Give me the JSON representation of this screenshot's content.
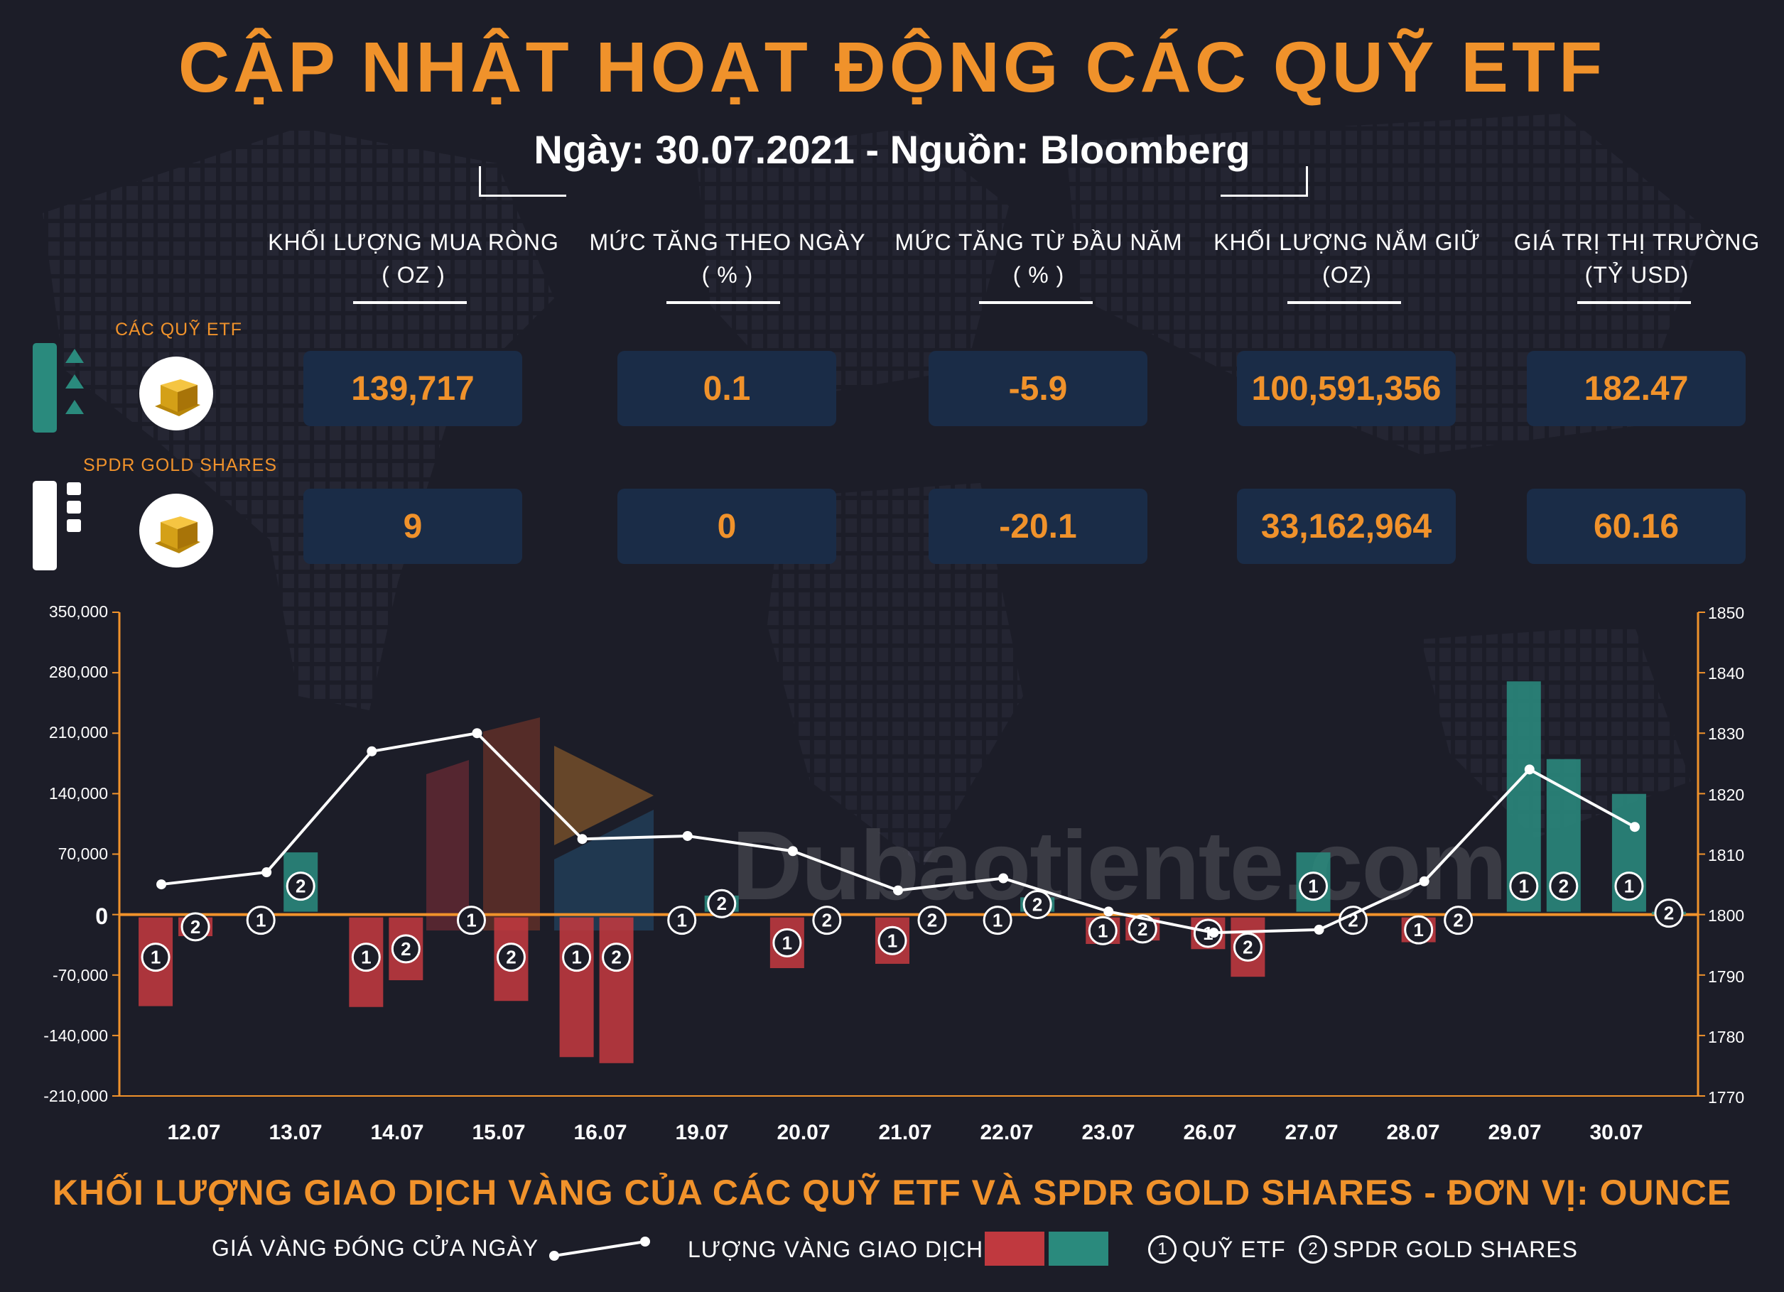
{
  "header": {
    "title": "CẬP NHẬT HOẠT ĐỘNG CÁC QUỸ ETF",
    "subtitle": "Ngày: 30.07.2021 - Nguồn: Bloomberg"
  },
  "table": {
    "columns": [
      {
        "line1": "KHỐI LƯỢNG MUA RÒNG",
        "line2": "( OZ )"
      },
      {
        "line1": "MỨC TĂNG THEO NGÀY",
        "line2": "( % )"
      },
      {
        "line1": "MỨC TĂNG TỪ ĐẦU NĂM",
        "line2": "( % )"
      },
      {
        "line1": "KHỐI LƯỢNG NẮM GIỮ",
        "line2": "(OZ)"
      },
      {
        "line1": "GIÁ TRỊ THỊ TRƯỜNG",
        "line2": "(TỶ USD)"
      }
    ],
    "rows": [
      {
        "label": "CÁC QUỸ ETF",
        "values": [
          "139,717",
          "0.1",
          "-5.9",
          "100,591,356",
          "182.47"
        ],
        "icon": "gold-bar-icon",
        "status_icon": "bar-with-up-arrows-icon"
      },
      {
        "label": "SPDR GOLD SHARES",
        "values": [
          "9",
          "0",
          "-20.1",
          "33,162,964",
          "60.16"
        ],
        "icon": "gold-bar-icon",
        "status_icon": "bar-with-squares-icon"
      }
    ]
  },
  "watermark": {
    "text": "Dubaotiente.com"
  },
  "colors": {
    "accent": "#f0922b",
    "negative": "#c0393f",
    "positive": "#2a8a7d",
    "price_line": "#ffffff",
    "background": "#1c1d28"
  },
  "chart_data": {
    "type": "bar",
    "title": "KHỐI LƯỢNG GIAO DỊCH VÀNG CỦA CÁC QUỸ ETF VÀ SPDR GOLD SHARES - ĐƠN VỊ: OUNCE",
    "categories": [
      "12.07",
      "13.07",
      "14.07",
      "15.07",
      "16.07",
      "19.07",
      "20.07",
      "21.07",
      "22.07",
      "23.07",
      "26.07",
      "27.07",
      "28.07",
      "29.07",
      "30.07"
    ],
    "left_axis": {
      "ylim": [
        -210000,
        350000
      ],
      "ticks": [
        "350,000",
        "280,000",
        "210,000",
        "140,000",
        "70,000",
        "0",
        "-70,000",
        "-140,000",
        "-210,000"
      ],
      "tick_values": [
        350000,
        280000,
        210000,
        140000,
        70000,
        0,
        -70000,
        -140000,
        -210000
      ]
    },
    "right_axis": {
      "ylim": [
        1770,
        1850
      ],
      "ticks": [
        "1850",
        "1840",
        "1830",
        "1820",
        "1810",
        "1800",
        "1790",
        "1780",
        "1770"
      ],
      "tick_values": [
        1850,
        1840,
        1830,
        1820,
        1810,
        1800,
        1790,
        1780,
        1770
      ]
    },
    "series": [
      {
        "name": "QUỸ ETF",
        "badge": "1",
        "values": [
          -106000,
          0,
          -107000,
          0,
          -165000,
          0,
          -62000,
          -57000,
          0,
          -34000,
          -40000,
          72000,
          -32000,
          270000,
          139717
        ]
      },
      {
        "name": "SPDR GOLD SHARES",
        "badge": "2",
        "values": [
          -25000,
          72000,
          -76000,
          -100000,
          -172000,
          22000,
          0,
          0,
          20000,
          -30000,
          -72000,
          0,
          0,
          180000,
          9
        ]
      },
      {
        "name": "GIÁ VÀNG ĐÓNG CỬA NGÀY",
        "type": "line",
        "values": [
          1805,
          1807,
          1827,
          1830,
          1812.5,
          1813,
          1810.5,
          1804,
          1806,
          1800.5,
          1797,
          1797.5,
          1805.5,
          1824,
          1814.5
        ]
      }
    ],
    "legend": {
      "line_label": "GIÁ VÀNG ĐÓNG CỬA NGÀY",
      "bar_label": "LƯỢNG VÀNG GIAO DỊCH",
      "badge1_label": "QUỸ ETF",
      "badge2_label": "SPDR GOLD SHARES",
      "badge1": "1",
      "badge2": "2",
      "placement": "bottom"
    }
  }
}
